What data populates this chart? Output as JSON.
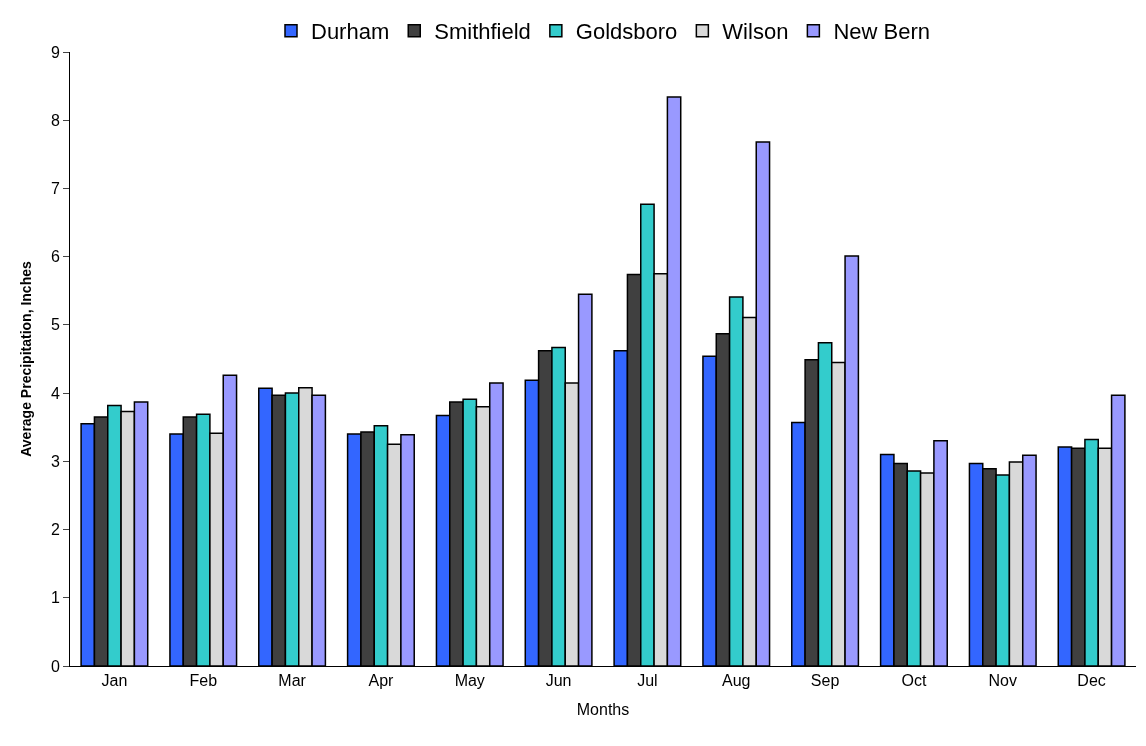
{
  "chart_data": {
    "type": "bar",
    "xlabel": "Months",
    "ylabel": "Average Precipitation, Inches",
    "categories": [
      "Jan",
      "Feb",
      "Mar",
      "Apr",
      "May",
      "Jun",
      "Jul",
      "Aug",
      "Sep",
      "Oct",
      "Nov",
      "Dec"
    ],
    "series": [
      {
        "name": "Durham",
        "color": "#3366ff",
        "values": [
          3.55,
          3.4,
          4.07,
          3.4,
          3.67,
          4.19,
          4.62,
          4.54,
          3.57,
          3.1,
          2.97,
          3.21
        ]
      },
      {
        "name": "Smithfield",
        "color": "#404040",
        "values": [
          3.65,
          3.65,
          3.97,
          3.43,
          3.87,
          4.62,
          5.74,
          4.87,
          4.49,
          2.97,
          2.89,
          3.19
        ]
      },
      {
        "name": "Goldsboro",
        "color": "#33cccc",
        "values": [
          3.82,
          3.69,
          4.0,
          3.52,
          3.91,
          4.67,
          6.77,
          5.41,
          4.74,
          2.86,
          2.8,
          3.32
        ]
      },
      {
        "name": "Wilson",
        "color": "#d9d9d9",
        "values": [
          3.73,
          3.41,
          4.08,
          3.25,
          3.8,
          4.15,
          5.75,
          5.11,
          4.45,
          2.83,
          2.99,
          3.19
        ]
      },
      {
        "name": "New Bern",
        "color": "#9999ff",
        "values": [
          3.87,
          4.26,
          3.97,
          3.39,
          4.15,
          5.45,
          8.34,
          7.68,
          6.01,
          3.3,
          3.09,
          3.97
        ]
      }
    ],
    "ylim": [
      0,
      9
    ],
    "yticks": [
      0,
      1,
      2,
      3,
      4,
      5,
      6,
      7,
      8,
      9
    ],
    "grid": false,
    "legend": "top"
  }
}
